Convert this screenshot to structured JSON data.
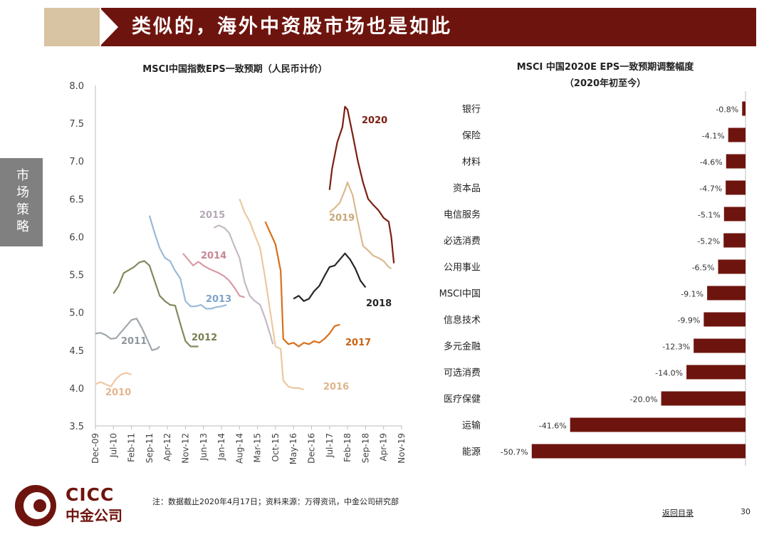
{
  "header": {
    "title": "类似的，海外中资股市场也是如此"
  },
  "sidebar": {
    "tab_label": "市场策略"
  },
  "footer": {
    "logo_en": "CICC",
    "logo_cn": "中金公司",
    "note": "注：数据截止2020年4月17日；资料来源：万得资讯，中金公司研究部",
    "back_link": "返回目录",
    "page_number": "30"
  },
  "colors": {
    "brand": "#6e140e",
    "accent_tan": "#d8c3a2",
    "bar": "#6e140e"
  },
  "chart_data": [
    {
      "type": "line",
      "title": "MSCI中国指数EPS一致预期（人民币计价）",
      "ylim": [
        3.5,
        8.0
      ],
      "yticks": [
        "8.0",
        "7.5",
        "7.0",
        "6.5",
        "6.0",
        "5.5",
        "5.0",
        "4.5",
        "4.0",
        "3.5"
      ],
      "xticks": [
        "Dec-09",
        "Jul-10",
        "Feb-11",
        "Sep-11",
        "Apr-12",
        "Nov-12",
        "Jun-13",
        "Jan-14",
        "Aug-14",
        "Mar-15",
        "Oct-15",
        "May-16",
        "Dec-16",
        "Jul-17",
        "Feb-18",
        "Sep-18",
        "Apr-19",
        "Nov-19"
      ],
      "series": [
        {
          "name": "2010",
          "color": "#f0c8a2",
          "points": [
            [
              0,
              4.05
            ],
            [
              2,
              4.08
            ],
            [
              4,
              4.05
            ],
            [
              6,
              4.02
            ],
            [
              8,
              4.12
            ],
            [
              10,
              4.18
            ],
            [
              12,
              4.2
            ],
            [
              14,
              4.18
            ]
          ]
        },
        {
          "name": "2011",
          "color": "#9fa7ac",
          "points": [
            [
              0,
              4.72
            ],
            [
              2,
              4.73
            ],
            [
              4,
              4.7
            ],
            [
              6,
              4.65
            ],
            [
              8,
              4.66
            ],
            [
              10,
              4.74
            ],
            [
              12,
              4.82
            ],
            [
              14,
              4.9
            ],
            [
              16,
              4.92
            ],
            [
              18,
              4.8
            ],
            [
              20,
              4.65
            ],
            [
              22,
              4.5
            ],
            [
              24,
              4.52
            ],
            [
              25,
              4.55
            ]
          ]
        },
        {
          "name": "2012",
          "color": "#808a5c",
          "points": [
            [
              7,
              5.25
            ],
            [
              9,
              5.35
            ],
            [
              11,
              5.52
            ],
            [
              13,
              5.56
            ],
            [
              15,
              5.6
            ],
            [
              17,
              5.66
            ],
            [
              19,
              5.68
            ],
            [
              21,
              5.62
            ],
            [
              23,
              5.42
            ],
            [
              25,
              5.22
            ],
            [
              27,
              5.15
            ],
            [
              29,
              5.1
            ],
            [
              31,
              5.09
            ],
            [
              33,
              4.85
            ],
            [
              35,
              4.62
            ],
            [
              37,
              4.55
            ],
            [
              40,
              4.55
            ]
          ]
        },
        {
          "name": "2013",
          "color": "#9bb9d8",
          "points": [
            [
              21,
              6.28
            ],
            [
              23,
              6.05
            ],
            [
              25,
              5.85
            ],
            [
              27,
              5.72
            ],
            [
              29,
              5.68
            ],
            [
              31,
              5.55
            ],
            [
              33,
              5.45
            ],
            [
              35,
              5.15
            ],
            [
              37,
              5.08
            ],
            [
              39,
              5.08
            ],
            [
              41,
              5.1
            ],
            [
              43,
              5.05
            ],
            [
              45,
              5.05
            ],
            [
              47,
              5.07
            ],
            [
              49,
              5.08
            ],
            [
              51,
              5.1
            ]
          ]
        },
        {
          "name": "2014",
          "color": "#d99aa4",
          "points": [
            [
              34,
              5.78
            ],
            [
              36,
              5.7
            ],
            [
              38,
              5.62
            ],
            [
              40,
              5.67
            ],
            [
              42,
              5.62
            ],
            [
              44,
              5.58
            ],
            [
              46,
              5.55
            ],
            [
              48,
              5.52
            ],
            [
              50,
              5.48
            ],
            [
              52,
              5.42
            ],
            [
              54,
              5.33
            ],
            [
              56,
              5.22
            ],
            [
              58,
              5.2
            ]
          ]
        },
        {
          "name": "2015",
          "color": "#c4bac4",
          "points": [
            [
              46,
              6.12
            ],
            [
              48,
              6.15
            ],
            [
              50,
              6.12
            ],
            [
              52,
              6.05
            ],
            [
              54,
              5.88
            ],
            [
              56,
              5.72
            ],
            [
              58,
              5.4
            ],
            [
              60,
              5.22
            ],
            [
              62,
              5.15
            ],
            [
              64,
              5.1
            ],
            [
              66,
              4.92
            ],
            [
              68,
              4.7
            ],
            [
              69,
              4.58
            ]
          ]
        },
        {
          "name": "2016",
          "color": "#ecc8a0",
          "points": [
            [
              56,
              6.5
            ],
            [
              58,
              6.32
            ],
            [
              60,
              6.2
            ],
            [
              62,
              6.02
            ],
            [
              64,
              5.85
            ],
            [
              66,
              5.45
            ],
            [
              68,
              5.0
            ],
            [
              70,
              4.55
            ],
            [
              72,
              4.52
            ],
            [
              73,
              4.1
            ],
            [
              75,
              4.02
            ],
            [
              77,
              4.0
            ],
            [
              79,
              4.0
            ],
            [
              81,
              3.98
            ]
          ]
        },
        {
          "name": "2017",
          "color": "#d86f1a",
          "points": [
            [
              66,
              6.2
            ],
            [
              68,
              6.05
            ],
            [
              70,
              5.9
            ],
            [
              72,
              5.55
            ],
            [
              73,
              4.65
            ],
            [
              75,
              4.58
            ],
            [
              77,
              4.6
            ],
            [
              79,
              4.55
            ],
            [
              81,
              4.6
            ],
            [
              83,
              4.58
            ],
            [
              85,
              4.62
            ],
            [
              87,
              4.6
            ],
            [
              89,
              4.65
            ],
            [
              91,
              4.72
            ],
            [
              93,
              4.82
            ],
            [
              95,
              4.84
            ]
          ]
        },
        {
          "name": "2018",
          "color": "#262626",
          "points": [
            [
              77,
              5.18
            ],
            [
              79,
              5.22
            ],
            [
              81,
              5.15
            ],
            [
              83,
              5.18
            ],
            [
              85,
              5.28
            ],
            [
              87,
              5.35
            ],
            [
              89,
              5.48
            ],
            [
              91,
              5.6
            ],
            [
              93,
              5.62
            ],
            [
              95,
              5.7
            ],
            [
              97,
              5.78
            ],
            [
              99,
              5.7
            ],
            [
              101,
              5.58
            ],
            [
              103,
              5.42
            ],
            [
              105,
              5.33
            ]
          ]
        },
        {
          "name": "2019",
          "color": "#d9b98e",
          "points": [
            [
              91,
              6.32
            ],
            [
              93,
              6.38
            ],
            [
              95,
              6.45
            ],
            [
              97,
              6.62
            ],
            [
              98,
              6.72
            ],
            [
              100,
              6.55
            ],
            [
              102,
              6.2
            ],
            [
              104,
              5.88
            ],
            [
              106,
              5.82
            ],
            [
              108,
              5.75
            ],
            [
              110,
              5.72
            ],
            [
              112,
              5.68
            ],
            [
              114,
              5.6
            ],
            [
              115,
              5.58
            ]
          ]
        },
        {
          "name": "2020",
          "color": "#7a1f12",
          "points": [
            [
              91,
              6.62
            ],
            [
              92,
              6.9
            ],
            [
              94,
              7.25
            ],
            [
              96,
              7.45
            ],
            [
              97,
              7.72
            ],
            [
              98,
              7.68
            ],
            [
              100,
              7.35
            ],
            [
              102,
              7.0
            ],
            [
              104,
              6.72
            ],
            [
              106,
              6.5
            ],
            [
              108,
              6.42
            ],
            [
              110,
              6.35
            ],
            [
              112,
              6.25
            ],
            [
              114,
              6.2
            ],
            [
              115,
              6.0
            ],
            [
              116,
              5.65
            ]
          ]
        }
      ],
      "series_label_colors": {
        "2010": "#e6b48c",
        "2011": "#8f979d",
        "2012": "#75804f",
        "2013": "#7ea3c9",
        "2014": "#c98593",
        "2015": "#b5aab5",
        "2016": "#dfb48a",
        "2017": "#c96214",
        "2018": "#262626",
        "2019": "#c9a77a",
        "2020": "#7a1f12"
      }
    },
    {
      "type": "bar",
      "orientation": "horizontal",
      "title": "MSCI 中国2020E EPS一致预期调整幅度",
      "subtitle": "（2020年初至今）",
      "categories": [
        "银行",
        "保险",
        "材料",
        "资本品",
        "电信服务",
        "必选消费",
        "公用事业",
        "MSCI中国",
        "信息技术",
        "多元金融",
        "可选消费",
        "医疗保健",
        "运输",
        "能源"
      ],
      "values": [
        -0.8,
        -4.1,
        -4.6,
        -4.7,
        -5.1,
        -5.2,
        -6.5,
        -9.1,
        -9.9,
        -12.3,
        -14.0,
        -20.0,
        -41.6,
        -50.7
      ],
      "value_labels": [
        "-0.8%",
        "-4.1%",
        "-4.6%",
        "-4.7%",
        "-5.1%",
        "-5.2%",
        "-6.5%",
        "-9.1%",
        "-9.9%",
        "-12.3%",
        "-14.0%",
        "-20.0%",
        "-41.6%",
        "-50.7%"
      ],
      "xlim": [
        -51,
        0
      ]
    }
  ]
}
